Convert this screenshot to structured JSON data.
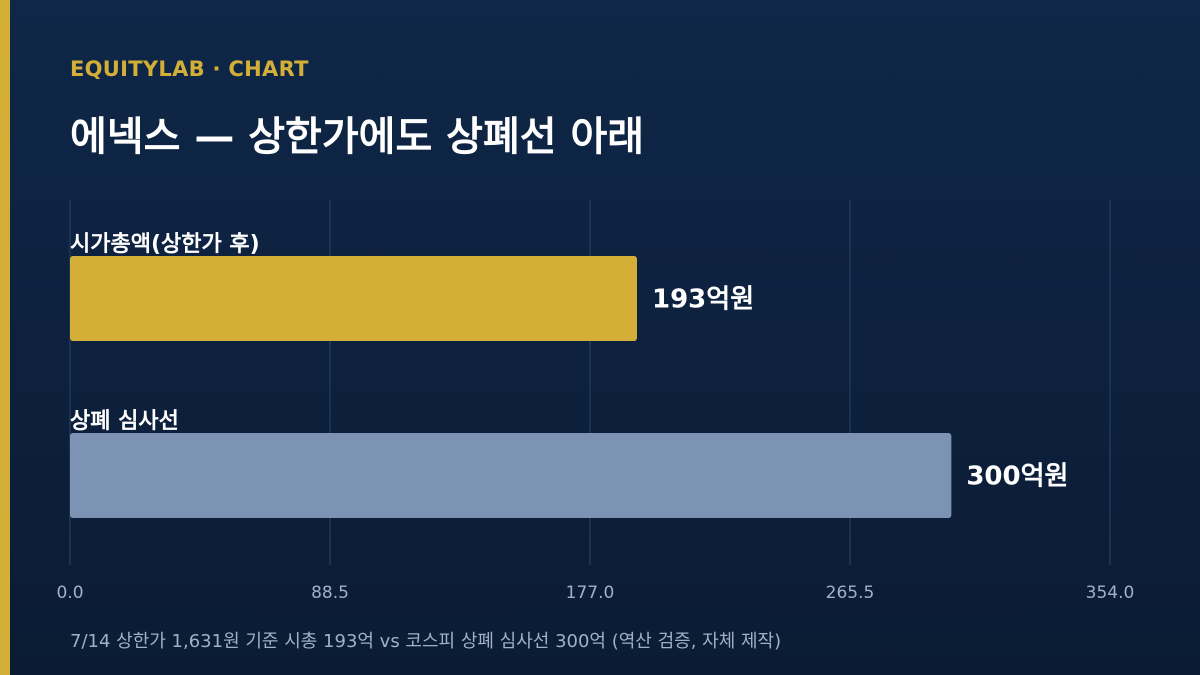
{
  "brand": "EQUITYLAB · CHART",
  "title": "에넥스 — 상한가에도 상폐선 아래",
  "caption": "7/14 상한가 1,631원 기준 시총 193억 vs 코스피 상폐 심사선 300억 (역산 검증, 자체 제작)",
  "colors": {
    "accent": "#d4af37",
    "bar_primary": "#d4af37",
    "bar_secondary": "#7d93b4",
    "grid": "#2c4466",
    "background": "#0f2748"
  },
  "chart_data": {
    "type": "bar",
    "orientation": "horizontal",
    "categories": [
      "시가총액(상한가 후)",
      "상폐 심사선"
    ],
    "values": [
      193,
      300
    ],
    "value_labels": [
      "193억원",
      "300억원"
    ],
    "ticks": [
      0,
      88.5,
      177,
      265.5,
      354
    ],
    "tick_labels": [
      "0.0",
      "88.5",
      "177.0",
      "265.5",
      "354.0"
    ],
    "xlim": [
      0,
      354
    ],
    "grid": true,
    "legend": "none"
  }
}
